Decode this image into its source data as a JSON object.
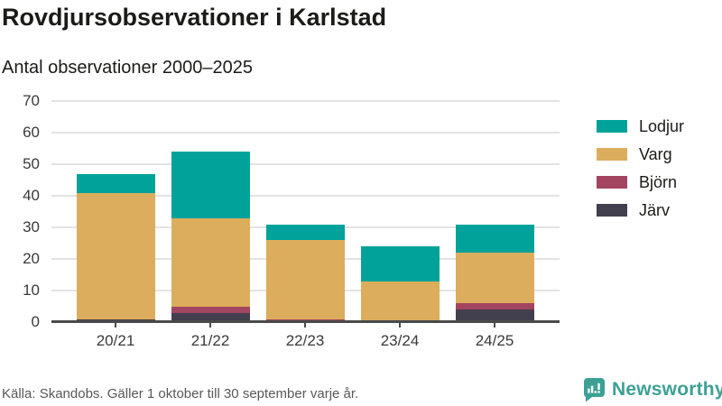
{
  "header": {
    "title": "Rovdjursobservationer i Karlstad",
    "subtitle": "Antal observationer 2000–2025"
  },
  "chart_data": {
    "type": "bar",
    "stacked": true,
    "title": "Rovdjursobservationer i Karlstad",
    "subtitle": "Antal observationer 2000–2025",
    "categories": [
      "20/21",
      "21/22",
      "22/23",
      "23/24",
      "24/25"
    ],
    "series": [
      {
        "name": "Järv",
        "color": "#423f4e",
        "values": [
          1,
          3,
          0,
          0,
          4
        ]
      },
      {
        "name": "Björn",
        "color": "#a34460",
        "values": [
          0,
          2,
          1,
          0,
          2
        ]
      },
      {
        "name": "Varg",
        "color": "#dbad5c",
        "values": [
          40,
          28,
          25,
          13,
          16
        ]
      },
      {
        "name": "Lodjur",
        "color": "#00a29a",
        "values": [
          6,
          21,
          5,
          11,
          9
        ]
      }
    ],
    "totals": [
      47,
      54,
      31,
      24,
      31
    ],
    "ylim": [
      0,
      70
    ],
    "yticks": [
      0,
      10,
      20,
      30,
      40,
      50,
      60,
      70
    ],
    "grid": true,
    "legend_position": "right",
    "legend_order_top_to_bottom": [
      "Lodjur",
      "Varg",
      "Björn",
      "Järv"
    ]
  },
  "colors": {
    "lodjur": "#00a29a",
    "varg": "#dbad5c",
    "bjorn": "#a34460",
    "jarv": "#423f4e",
    "gridline": "#e3e3e3",
    "axis": "#4a4a4a",
    "brand_teal": "#3da095"
  },
  "footer": {
    "source": "Källa: Skandobs. Gäller 1 oktober till 30 september varje år.",
    "brand": "Newsworthy"
  }
}
